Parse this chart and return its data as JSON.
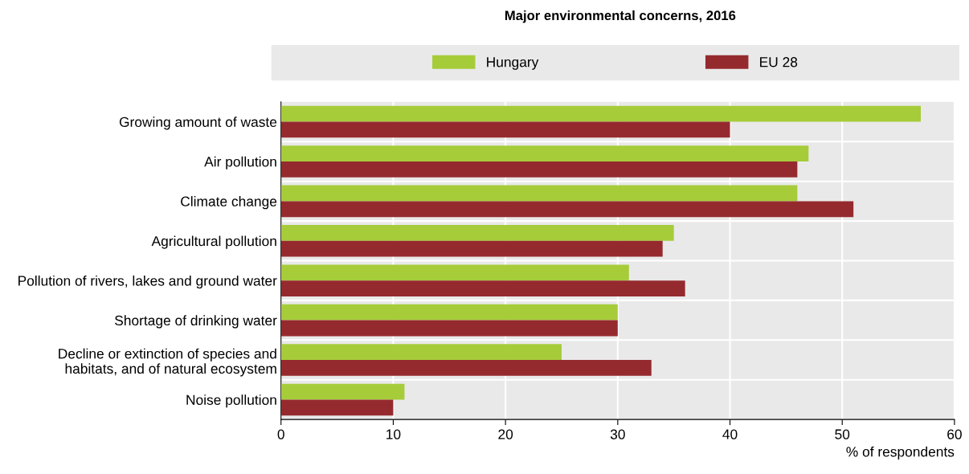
{
  "chart_data": {
    "type": "bar",
    "orientation": "horizontal",
    "title": "Major environmental concerns, 2016",
    "categories": [
      "Growing amount of waste",
      "Air pollution",
      "Climate change",
      "Agricultural pollution",
      "Pollution of rivers, lakes and ground water",
      "Shortage of drinking water",
      "Decline or extinction of species and\nhabitats, and of natural ecosystem",
      "Noise pollution"
    ],
    "series": [
      {
        "name": "Hungary",
        "color": "#a6cc3a",
        "values": [
          57,
          47,
          46,
          35,
          31,
          30,
          25,
          11
        ]
      },
      {
        "name": "EU 28",
        "color": "#952a2e",
        "values": [
          40,
          46,
          51,
          34,
          36,
          30,
          33,
          10
        ]
      }
    ],
    "xlabel": "% of respondents",
    "xlim": [
      0,
      60
    ],
    "xticks": [
      0,
      10,
      20,
      30,
      40,
      50,
      60
    ],
    "grid": true,
    "legend": "top"
  }
}
